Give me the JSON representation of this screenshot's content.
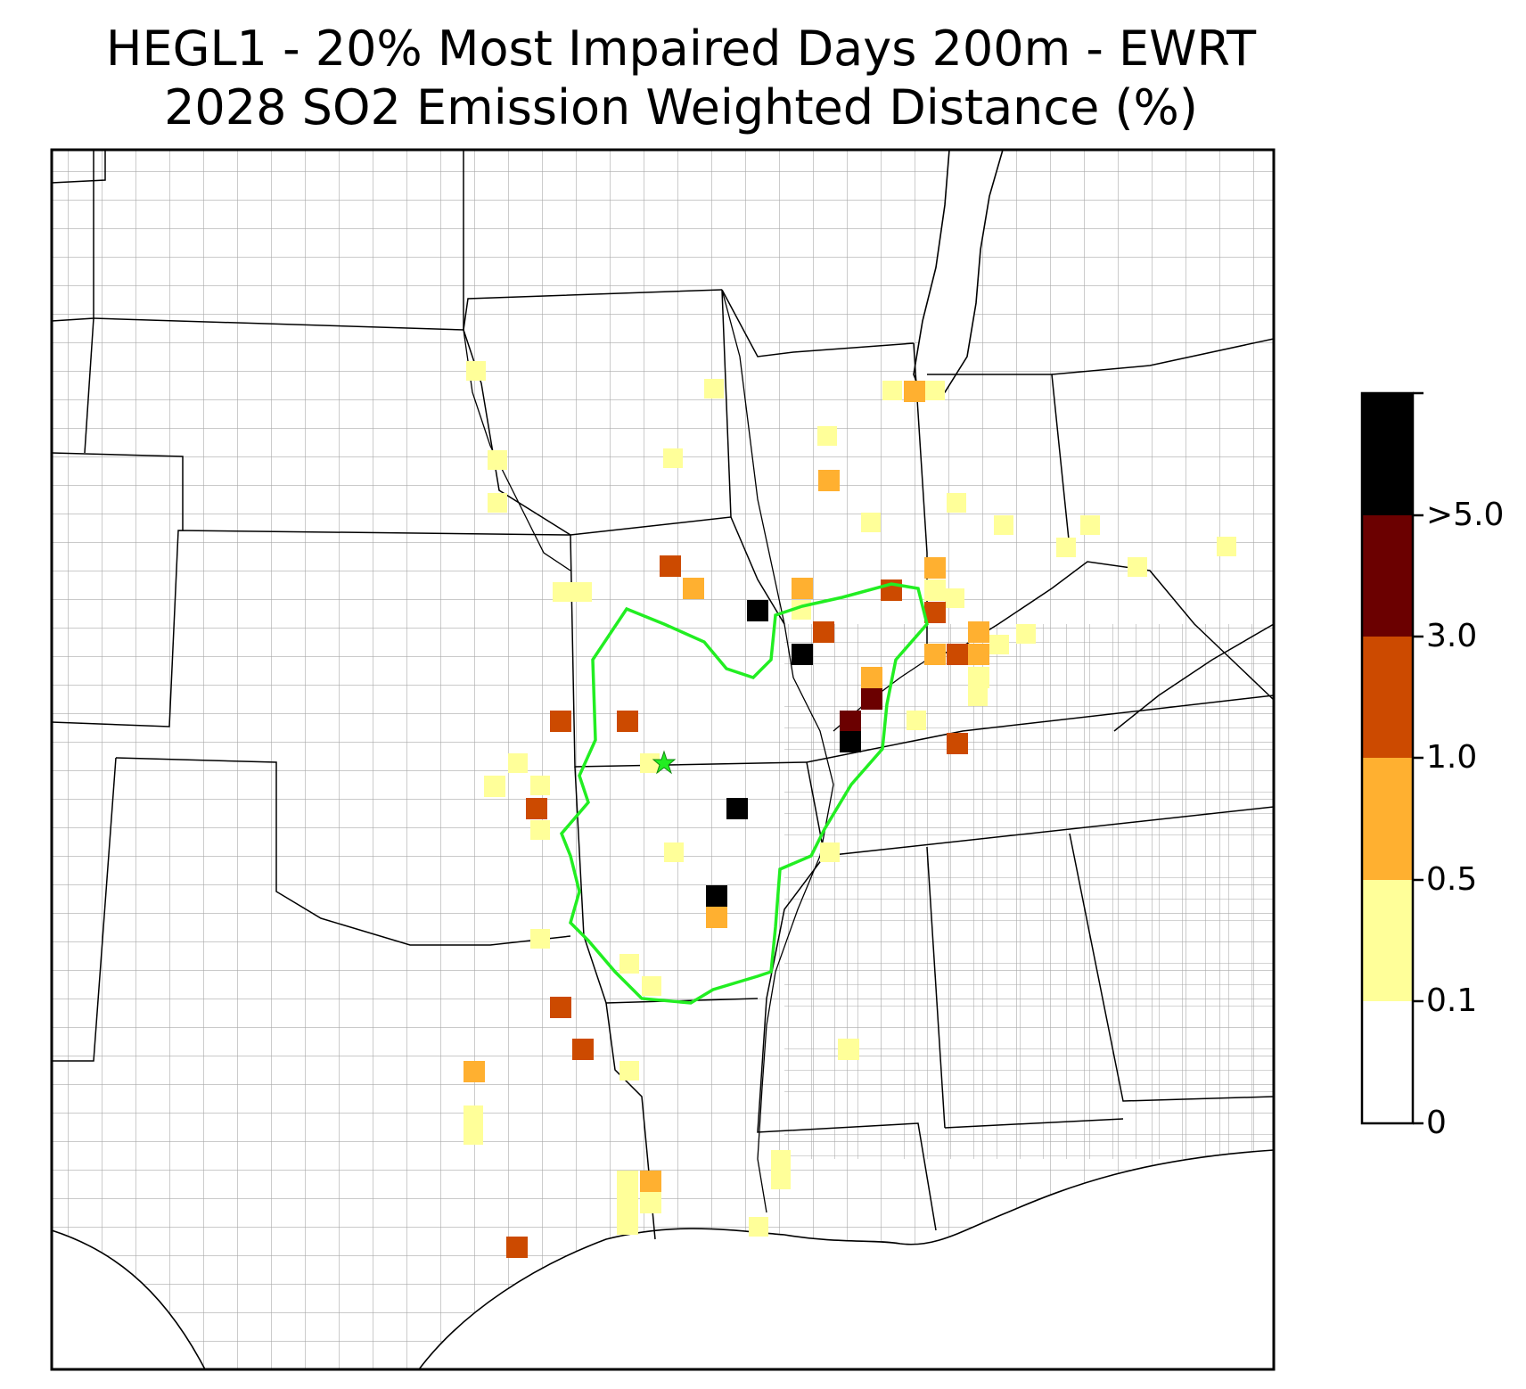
{
  "title": {
    "line1": "HEGL1 - 20% Most Impaired Days 200m - EWRT",
    "line2": "2028 SO2 Emission Weighted Distance (%)"
  },
  "colorbar": {
    "labels": [
      "0",
      "0.1",
      "0.5",
      "1.0",
      "3.0",
      ">5.0"
    ],
    "bins": [
      {
        "range": "0-0.1",
        "color": "#ffffff"
      },
      {
        "range": "0.1-0.5",
        "color": "#ffff99"
      },
      {
        "range": "0.5-1.0",
        "color": "#ffb030"
      },
      {
        "range": "1.0-3.0",
        "color": "#cc4a00"
      },
      {
        "range": "3.0-5.0",
        "color": "#6b0000"
      },
      {
        "range": ">5.0",
        "color": "#000000"
      }
    ]
  },
  "map": {
    "target_marker": {
      "name": "star-icon",
      "color": "#22ee22"
    },
    "contour_color": "#22ee22"
  }
}
